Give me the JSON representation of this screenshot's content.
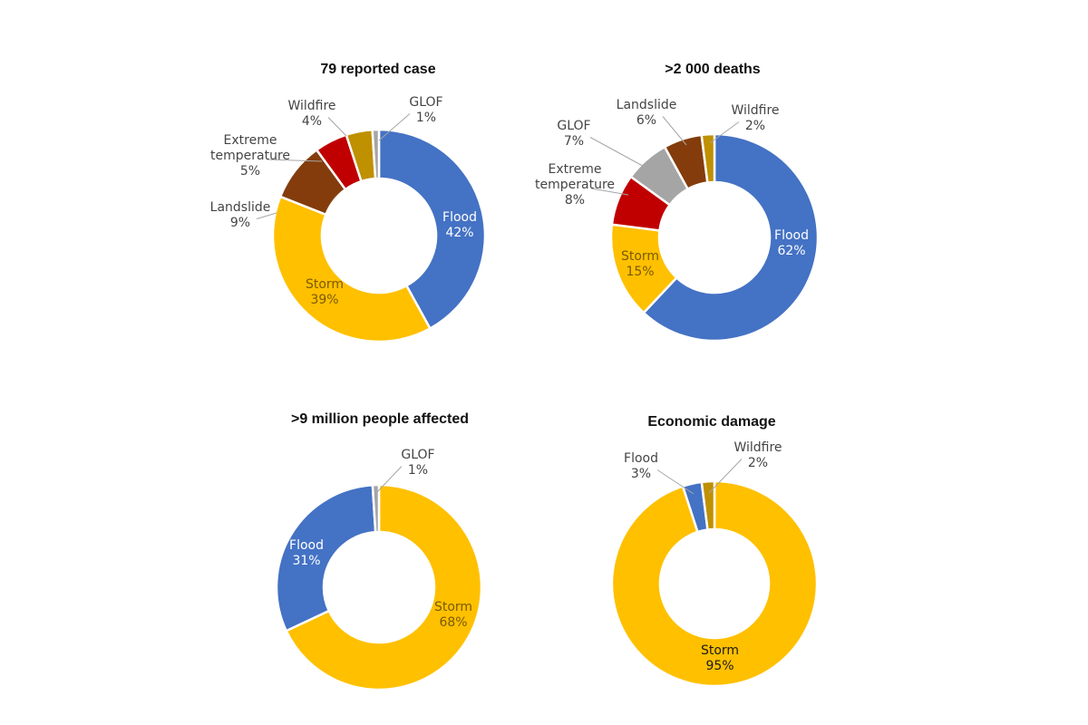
{
  "colors": {
    "Flood": "#4472C4",
    "Storm": "#FFC000",
    "Landslide": "#843C0C",
    "Extreme temperature": "#C00000",
    "Wildfire": "#BF9000",
    "GLOF": "#A5A5A5"
  },
  "chart_data": [
    {
      "type": "pie",
      "title": "79 reported case",
      "slices": [
        {
          "name": "Flood",
          "value": 42,
          "pct_label": "42%"
        },
        {
          "name": "Storm",
          "value": 39,
          "pct_label": "39%"
        },
        {
          "name": "Landslide",
          "value": 9,
          "pct_label": "9%"
        },
        {
          "name": "Extreme temperature",
          "value": 5,
          "pct_label": "5%"
        },
        {
          "name": "Wildfire",
          "value": 4,
          "pct_label": "4%"
        },
        {
          "name": "GLOF",
          "value": 1,
          "pct_label": "1%"
        }
      ]
    },
    {
      "type": "pie",
      "title": ">2 000 deaths",
      "slices": [
        {
          "name": "Flood",
          "value": 62,
          "pct_label": "62%"
        },
        {
          "name": "Storm",
          "value": 15,
          "pct_label": "15%"
        },
        {
          "name": "Extreme temperature",
          "value": 8,
          "pct_label": "8%"
        },
        {
          "name": "GLOF",
          "value": 7,
          "pct_label": "7%"
        },
        {
          "name": "Landslide",
          "value": 6,
          "pct_label": "6%"
        },
        {
          "name": "Wildfire",
          "value": 2,
          "pct_label": "2%"
        }
      ]
    },
    {
      "type": "pie",
      "title": ">9 million people affected",
      "slices": [
        {
          "name": "Storm",
          "value": 68,
          "pct_label": "68%"
        },
        {
          "name": "Flood",
          "value": 31,
          "pct_label": "31%"
        },
        {
          "name": "GLOF",
          "value": 1,
          "pct_label": "1%"
        }
      ]
    },
    {
      "type": "pie",
      "title": "Economic damage",
      "slices": [
        {
          "name": "Storm",
          "value": 95,
          "pct_label": "95%"
        },
        {
          "name": "Flood",
          "value": 3,
          "pct_label": "3%"
        },
        {
          "name": "Wildfire",
          "value": 2,
          "pct_label": "2%"
        }
      ]
    }
  ]
}
